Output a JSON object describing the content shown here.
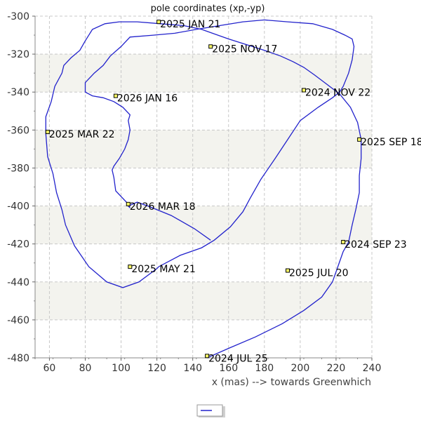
{
  "chart_data": {
    "type": "line",
    "title": "pole coordinates (xp,-yp)",
    "xlabel": "x (mas) --> towards Greenwhich",
    "ylabel": "",
    "xlim": [
      52,
      240
    ],
    "ylim": [
      -480,
      -300
    ],
    "x_ticks": [
      60,
      80,
      100,
      120,
      140,
      160,
      180,
      200,
      220,
      240
    ],
    "y_ticks": [
      -300,
      -320,
      -340,
      -360,
      -380,
      -400,
      -420,
      -440,
      -460,
      -480
    ],
    "grid": true,
    "legend": {
      "position": "bottom-center",
      "entries": [
        ""
      ]
    },
    "series": [
      {
        "name": "",
        "color": "#2222cc",
        "x": [
          148,
          160,
          175,
          190,
          202,
          212,
          218,
          221,
          224,
          227,
          229,
          231,
          233,
          233,
          234,
          234,
          232,
          228,
          222,
          215,
          208,
          202,
          196,
          189,
          180,
          170,
          160,
          151,
          145,
          135,
          122,
          109,
          99,
          91,
          84,
          80,
          77,
          72,
          68,
          67,
          63,
          61,
          58,
          58,
          59,
          62,
          64,
          67,
          69,
          74,
          82,
          92,
          101,
          110,
          120,
          121,
          133,
          145,
          152,
          161,
          168,
          172,
          178,
          186,
          193,
          200,
          210,
          218,
          222,
          224,
          227,
          229,
          230,
          229,
          225,
          218,
          207,
          193,
          180,
          168,
          155,
          142,
          130,
          118,
          105,
          100,
          94,
          90,
          85,
          80,
          80,
          84,
          90,
          96,
          101,
          105,
          104,
          105,
          104,
          102,
          99,
          96,
          95,
          96,
          97,
          104,
          105,
          104,
          109,
          115,
          128,
          141,
          150
        ],
        "y": [
          -480,
          -475,
          -469,
          -462,
          -455,
          -448,
          -440,
          -432,
          -424,
          -419,
          -410,
          -402,
          -393,
          -384,
          -375,
          -365,
          -356,
          -348,
          -341,
          -336,
          -331,
          -327,
          -324,
          -321,
          -318,
          -315,
          -312,
          -309,
          -307,
          -305,
          -304,
          -303,
          -303,
          -304,
          -307,
          -313,
          -318,
          -322,
          -326,
          -330,
          -337,
          -345,
          -353,
          -362,
          -374,
          -383,
          -393,
          -402,
          -410,
          -421,
          -432,
          -440,
          -443,
          -440,
          -433,
          -432,
          -426,
          -422,
          -418,
          -411,
          -403,
          -396,
          -386,
          -375,
          -365,
          -355,
          -348,
          -343,
          -340,
          -337,
          -330,
          -323,
          -316,
          -312,
          -310,
          -307,
          -304,
          -303,
          -302,
          -303,
          -305,
          -307,
          -309,
          -310,
          -311,
          -316,
          -321,
          -326,
          -330,
          -335,
          -340,
          -342,
          -343,
          -345,
          -348,
          -352,
          -355,
          -360,
          -365,
          -370,
          -375,
          -379,
          -381,
          -385,
          -392,
          -399,
          -401,
          -400,
          -398,
          -400,
          -405,
          -412,
          -418
        ]
      }
    ],
    "annotations": [
      {
        "text": "2024 JUL 25",
        "x": 148,
        "y": -479
      },
      {
        "text": "2024 SEP 23",
        "x": 224,
        "y": -419
      },
      {
        "text": "2024 NOV 22",
        "x": 202,
        "y": -339
      },
      {
        "text": "2025 JAN 21",
        "x": 121,
        "y": -303
      },
      {
        "text": "2025 MAR 22",
        "x": 59,
        "y": -361
      },
      {
        "text": "2025 MAY 21",
        "x": 105,
        "y": -432
      },
      {
        "text": "2025 JUL 20",
        "x": 193,
        "y": -434
      },
      {
        "text": "2025 SEP 18",
        "x": 233,
        "y": -365
      },
      {
        "text": "2025 NOV 17",
        "x": 150,
        "y": -316
      },
      {
        "text": "2026 JAN 16",
        "x": 97,
        "y": -342
      },
      {
        "text": "2026 MAR 18",
        "x": 104,
        "y": -399
      }
    ]
  }
}
